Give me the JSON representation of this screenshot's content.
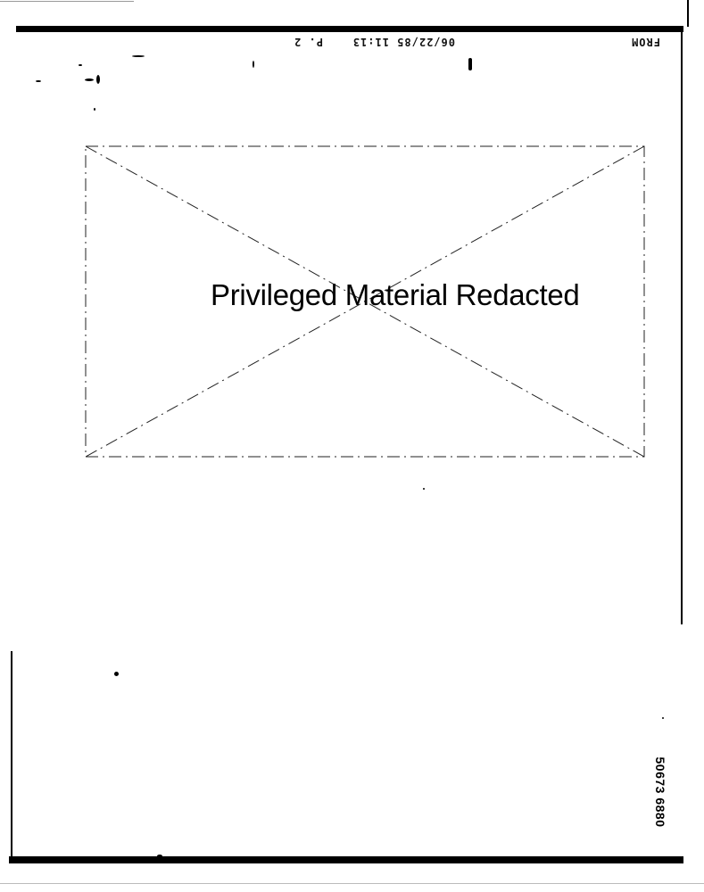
{
  "fax_header": {
    "from_label": "FROM",
    "timestamp": "06/22/85 11:13",
    "page": "P. 2"
  },
  "redaction": {
    "label": "Privileged Material Redacted"
  },
  "bates_number": "50673 6880"
}
